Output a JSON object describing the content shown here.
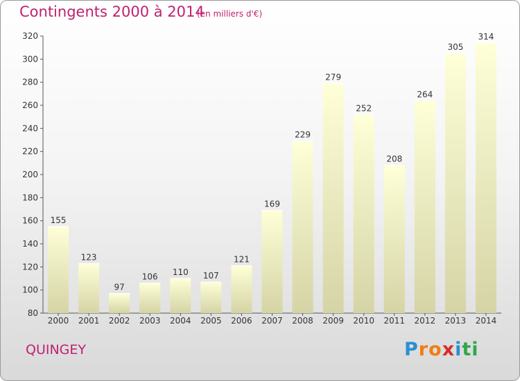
{
  "title": "Contingents 2000 à 2014",
  "unit": "(en milliers d'€)",
  "place": "QUINGEY",
  "brand": {
    "letters": [
      "P",
      "r",
      "o",
      "x",
      "i",
      "t",
      "i"
    ],
    "colors": [
      "#2a8fd0",
      "#ef7d12",
      "#ef7d12",
      "#d62b2b",
      "#2a8fd0",
      "#2fa84a",
      "#2fa84a"
    ]
  },
  "colors": {
    "bar_top": "#ffffd8",
    "bar_bottom": "#d4d4a6",
    "text": "#c0206f"
  },
  "chart_data": {
    "type": "bar",
    "title": "Contingents 2000 à 2014",
    "subtitle": "(en milliers d'€)",
    "categories": [
      "2000",
      "2001",
      "2002",
      "2003",
      "2004",
      "2005",
      "2006",
      "2007",
      "2008",
      "2009",
      "2010",
      "2011",
      "2012",
      "2013",
      "2014"
    ],
    "values": [
      155,
      123,
      97,
      106,
      110,
      107,
      121,
      169,
      229,
      279,
      252,
      208,
      264,
      305,
      314
    ],
    "value_labels": [
      "155",
      "123",
      "97",
      "106",
      "110",
      "107",
      "121",
      "169",
      "229",
      "279",
      "252",
      "208",
      "264",
      "305",
      "314"
    ],
    "ylim": [
      80,
      320
    ],
    "yticks": [
      "80",
      "100",
      "120",
      "140",
      "160",
      "180",
      "200",
      "220",
      "240",
      "260",
      "280",
      "300",
      "320"
    ],
    "grid": false,
    "xlabel": "",
    "ylabel": ""
  }
}
